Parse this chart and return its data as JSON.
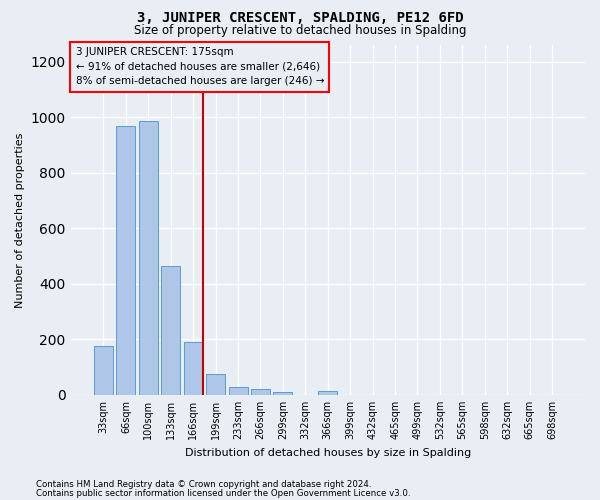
{
  "title": "3, JUNIPER CRESCENT, SPALDING, PE12 6FD",
  "subtitle": "Size of property relative to detached houses in Spalding",
  "xlabel": "Distribution of detached houses by size in Spalding",
  "ylabel": "Number of detached properties",
  "categories": [
    "33sqm",
    "66sqm",
    "100sqm",
    "133sqm",
    "166sqm",
    "199sqm",
    "233sqm",
    "266sqm",
    "299sqm",
    "332sqm",
    "366sqm",
    "399sqm",
    "432sqm",
    "465sqm",
    "499sqm",
    "532sqm",
    "565sqm",
    "598sqm",
    "632sqm",
    "665sqm",
    "698sqm"
  ],
  "values": [
    175,
    968,
    985,
    463,
    190,
    75,
    28,
    22,
    12,
    0,
    13,
    0,
    0,
    0,
    0,
    0,
    0,
    0,
    0,
    0,
    0
  ],
  "bar_color": "#aec6e8",
  "bar_edge_color": "#5b9bd5",
  "background_color": "#e8eef4",
  "grid_color": "#ffffff",
  "annotation_lines": [
    "3 JUNIPER CRESCENT: 175sqm",
    "← 91% of detached houses are smaller (2,646)",
    "8% of semi-detached houses are larger (246) →"
  ],
  "vline_index": 4,
  "vline_color": "#cc0000",
  "ylim": [
    0,
    1260
  ],
  "footnote1": "Contains HM Land Registry data © Crown copyright and database right 2024.",
  "footnote2": "Contains public sector information licensed under the Open Government Licence v3.0."
}
